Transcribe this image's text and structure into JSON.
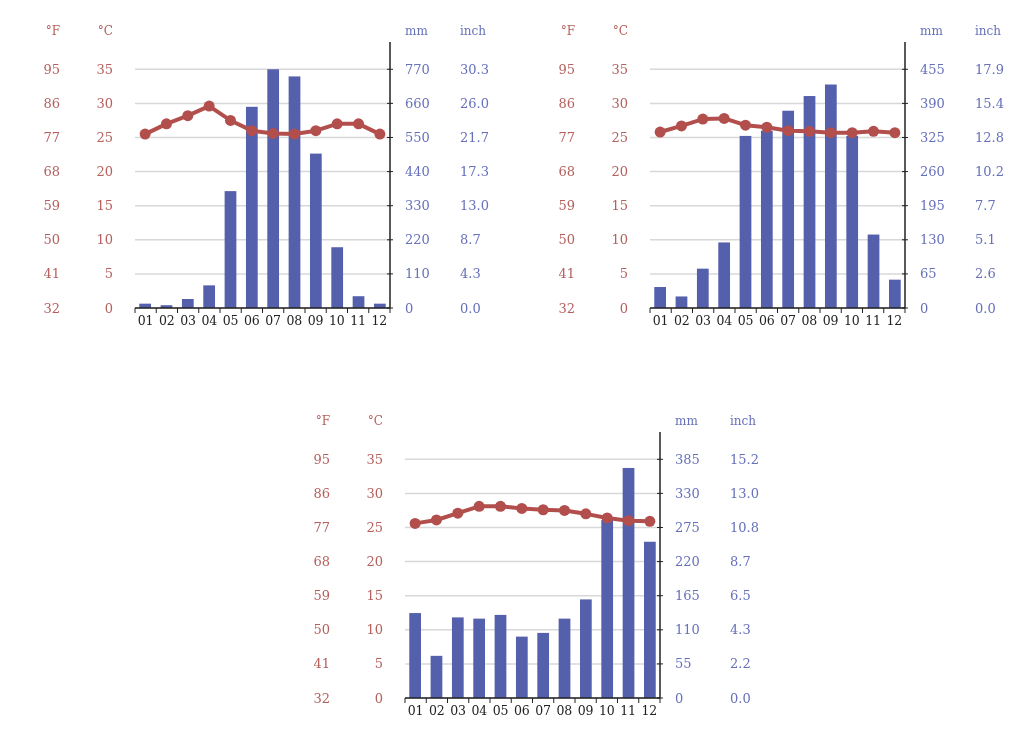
{
  "chart_data": [
    {
      "type": "bar",
      "categories": [
        "01",
        "02",
        "03",
        "04",
        "05",
        "06",
        "07",
        "08",
        "09",
        "10",
        "11",
        "12"
      ],
      "ylabel": "°C",
      "y3label": "°F",
      "y2label": "mm",
      "annotations": [
        "inch",
        "0.0",
        "4.3",
        "8.7",
        "13.0",
        "17.3",
        "21.7",
        "26.0",
        "30.3"
      ],
      "ylim": [
        0,
        39
      ],
      "yticks": [
        0,
        5,
        10,
        15,
        20,
        25,
        30,
        35
      ],
      "y3lim": [
        32,
        102.2
      ],
      "y3ticks": [
        32,
        41,
        50,
        59,
        68,
        77,
        86,
        95
      ],
      "y2lim": [
        0,
        858
      ],
      "y2ticks": [
        0,
        110,
        220,
        330,
        440,
        550,
        660,
        770
      ],
      "grid": "y",
      "marker": "circle",
      "series": [
        {
          "axis": "y2",
          "color": "#5560ad",
          "values": [
            14,
            9,
            29,
            73,
            377,
            649,
            770,
            747,
            498,
            196,
            38,
            14
          ]
        },
        {
          "type": "line",
          "axis": "y",
          "color": "#b24f4c",
          "values": [
            25.5,
            27.0,
            28.2,
            29.6,
            27.5,
            26.0,
            25.6,
            25.5,
            26.0,
            27.0,
            27.0,
            25.5
          ]
        }
      ]
    },
    {
      "type": "bar",
      "categories": [
        "01",
        "02",
        "03",
        "04",
        "05",
        "06",
        "07",
        "08",
        "09",
        "10",
        "11",
        "12"
      ],
      "ylabel": "°C",
      "y3label": "°F",
      "y2label": "mm",
      "annotations": [
        "inch",
        "0.0",
        "2.6",
        "5.1",
        "7.7",
        "10.2",
        "12.8",
        "15.4",
        "17.9"
      ],
      "ylim": [
        0,
        39
      ],
      "yticks": [
        0,
        5,
        10,
        15,
        20,
        25,
        30,
        35
      ],
      "y3lim": [
        32,
        102.2
      ],
      "y3ticks": [
        32,
        41,
        50,
        59,
        68,
        77,
        86,
        95
      ],
      "y2lim": [
        0,
        507
      ],
      "y2ticks": [
        0,
        65,
        130,
        195,
        260,
        325,
        390,
        455
      ],
      "grid": "y",
      "marker": "circle",
      "series": [
        {
          "axis": "y2",
          "color": "#5560ad",
          "values": [
            40,
            22,
            75,
            125,
            328,
            338,
            376,
            404,
            426,
            328,
            140,
            54
          ]
        },
        {
          "type": "line",
          "axis": "y",
          "color": "#b24f4c",
          "values": [
            25.8,
            26.7,
            27.7,
            27.8,
            26.8,
            26.5,
            26.0,
            25.9,
            25.7,
            25.7,
            25.9,
            25.7
          ]
        }
      ]
    },
    {
      "type": "bar",
      "categories": [
        "01",
        "02",
        "03",
        "04",
        "05",
        "06",
        "07",
        "08",
        "09",
        "10",
        "11",
        "12"
      ],
      "ylabel": "°C",
      "y3label": "°F",
      "y2label": "mm",
      "annotations": [
        "inch",
        "0.0",
        "2.2",
        "4.3",
        "6.5",
        "8.7",
        "10.8",
        "13.0",
        "15.2"
      ],
      "ylim": [
        0,
        39
      ],
      "yticks": [
        0,
        5,
        10,
        15,
        20,
        25,
        30,
        35
      ],
      "y3lim": [
        32,
        102.2
      ],
      "y3ticks": [
        32,
        41,
        50,
        59,
        68,
        77,
        86,
        95
      ],
      "y2lim": [
        0,
        429
      ],
      "y2ticks": [
        0,
        55,
        110,
        165,
        220,
        275,
        330,
        385
      ],
      "grid": "y",
      "marker": "circle",
      "series": [
        {
          "axis": "y2",
          "color": "#5560ad",
          "values": [
            137,
            68,
            130,
            128,
            134,
            99,
            105,
            128,
            159,
            287,
            371,
            252
          ]
        },
        {
          "type": "line",
          "axis": "y",
          "color": "#b24f4c",
          "values": [
            25.6,
            26.1,
            27.1,
            28.1,
            28.1,
            27.8,
            27.6,
            27.5,
            27.0,
            26.4,
            26.0,
            25.9
          ]
        }
      ]
    }
  ]
}
